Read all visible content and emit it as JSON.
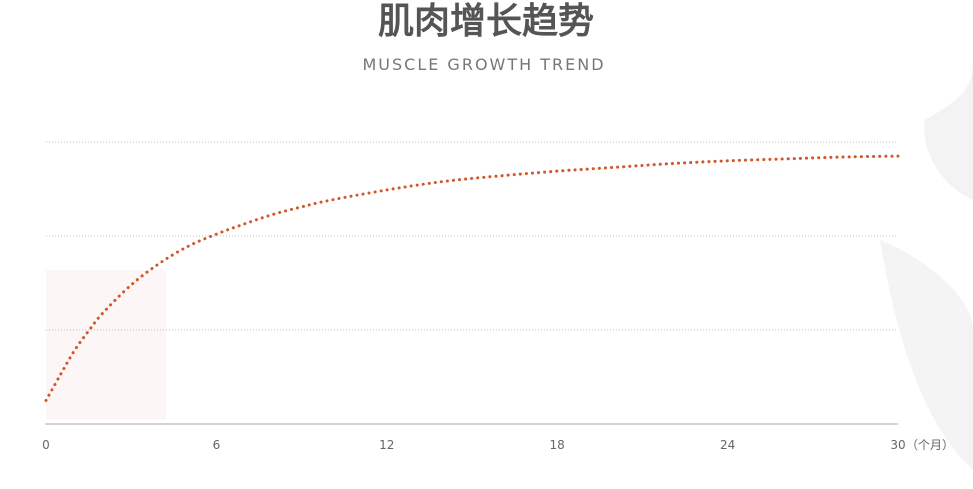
{
  "chart_data": {
    "type": "line",
    "title": "肌肉增长趋势",
    "subtitle": "MUSCLE GROWTH TREND",
    "x_unit": "（个月）",
    "x_ticks": [
      0,
      6,
      12,
      18,
      24,
      30
    ],
    "xlim": [
      0,
      30
    ],
    "ylim": [
      0,
      3
    ],
    "grid": true,
    "series": [
      {
        "x": [
          0,
          0.5,
          1,
          1.5,
          2,
          3,
          4,
          5,
          6,
          7,
          8,
          9,
          10,
          12,
          14,
          16,
          18,
          20,
          22,
          24,
          26,
          28,
          30
        ],
        "values": [
          0.25,
          0.52,
          0.78,
          0.99,
          1.18,
          1.48,
          1.71,
          1.89,
          2.02,
          2.13,
          2.23,
          2.31,
          2.38,
          2.49,
          2.58,
          2.64,
          2.69,
          2.73,
          2.77,
          2.8,
          2.82,
          2.84,
          2.85
        ],
        "color": "#d2562a",
        "style": "dotted"
      }
    ]
  }
}
